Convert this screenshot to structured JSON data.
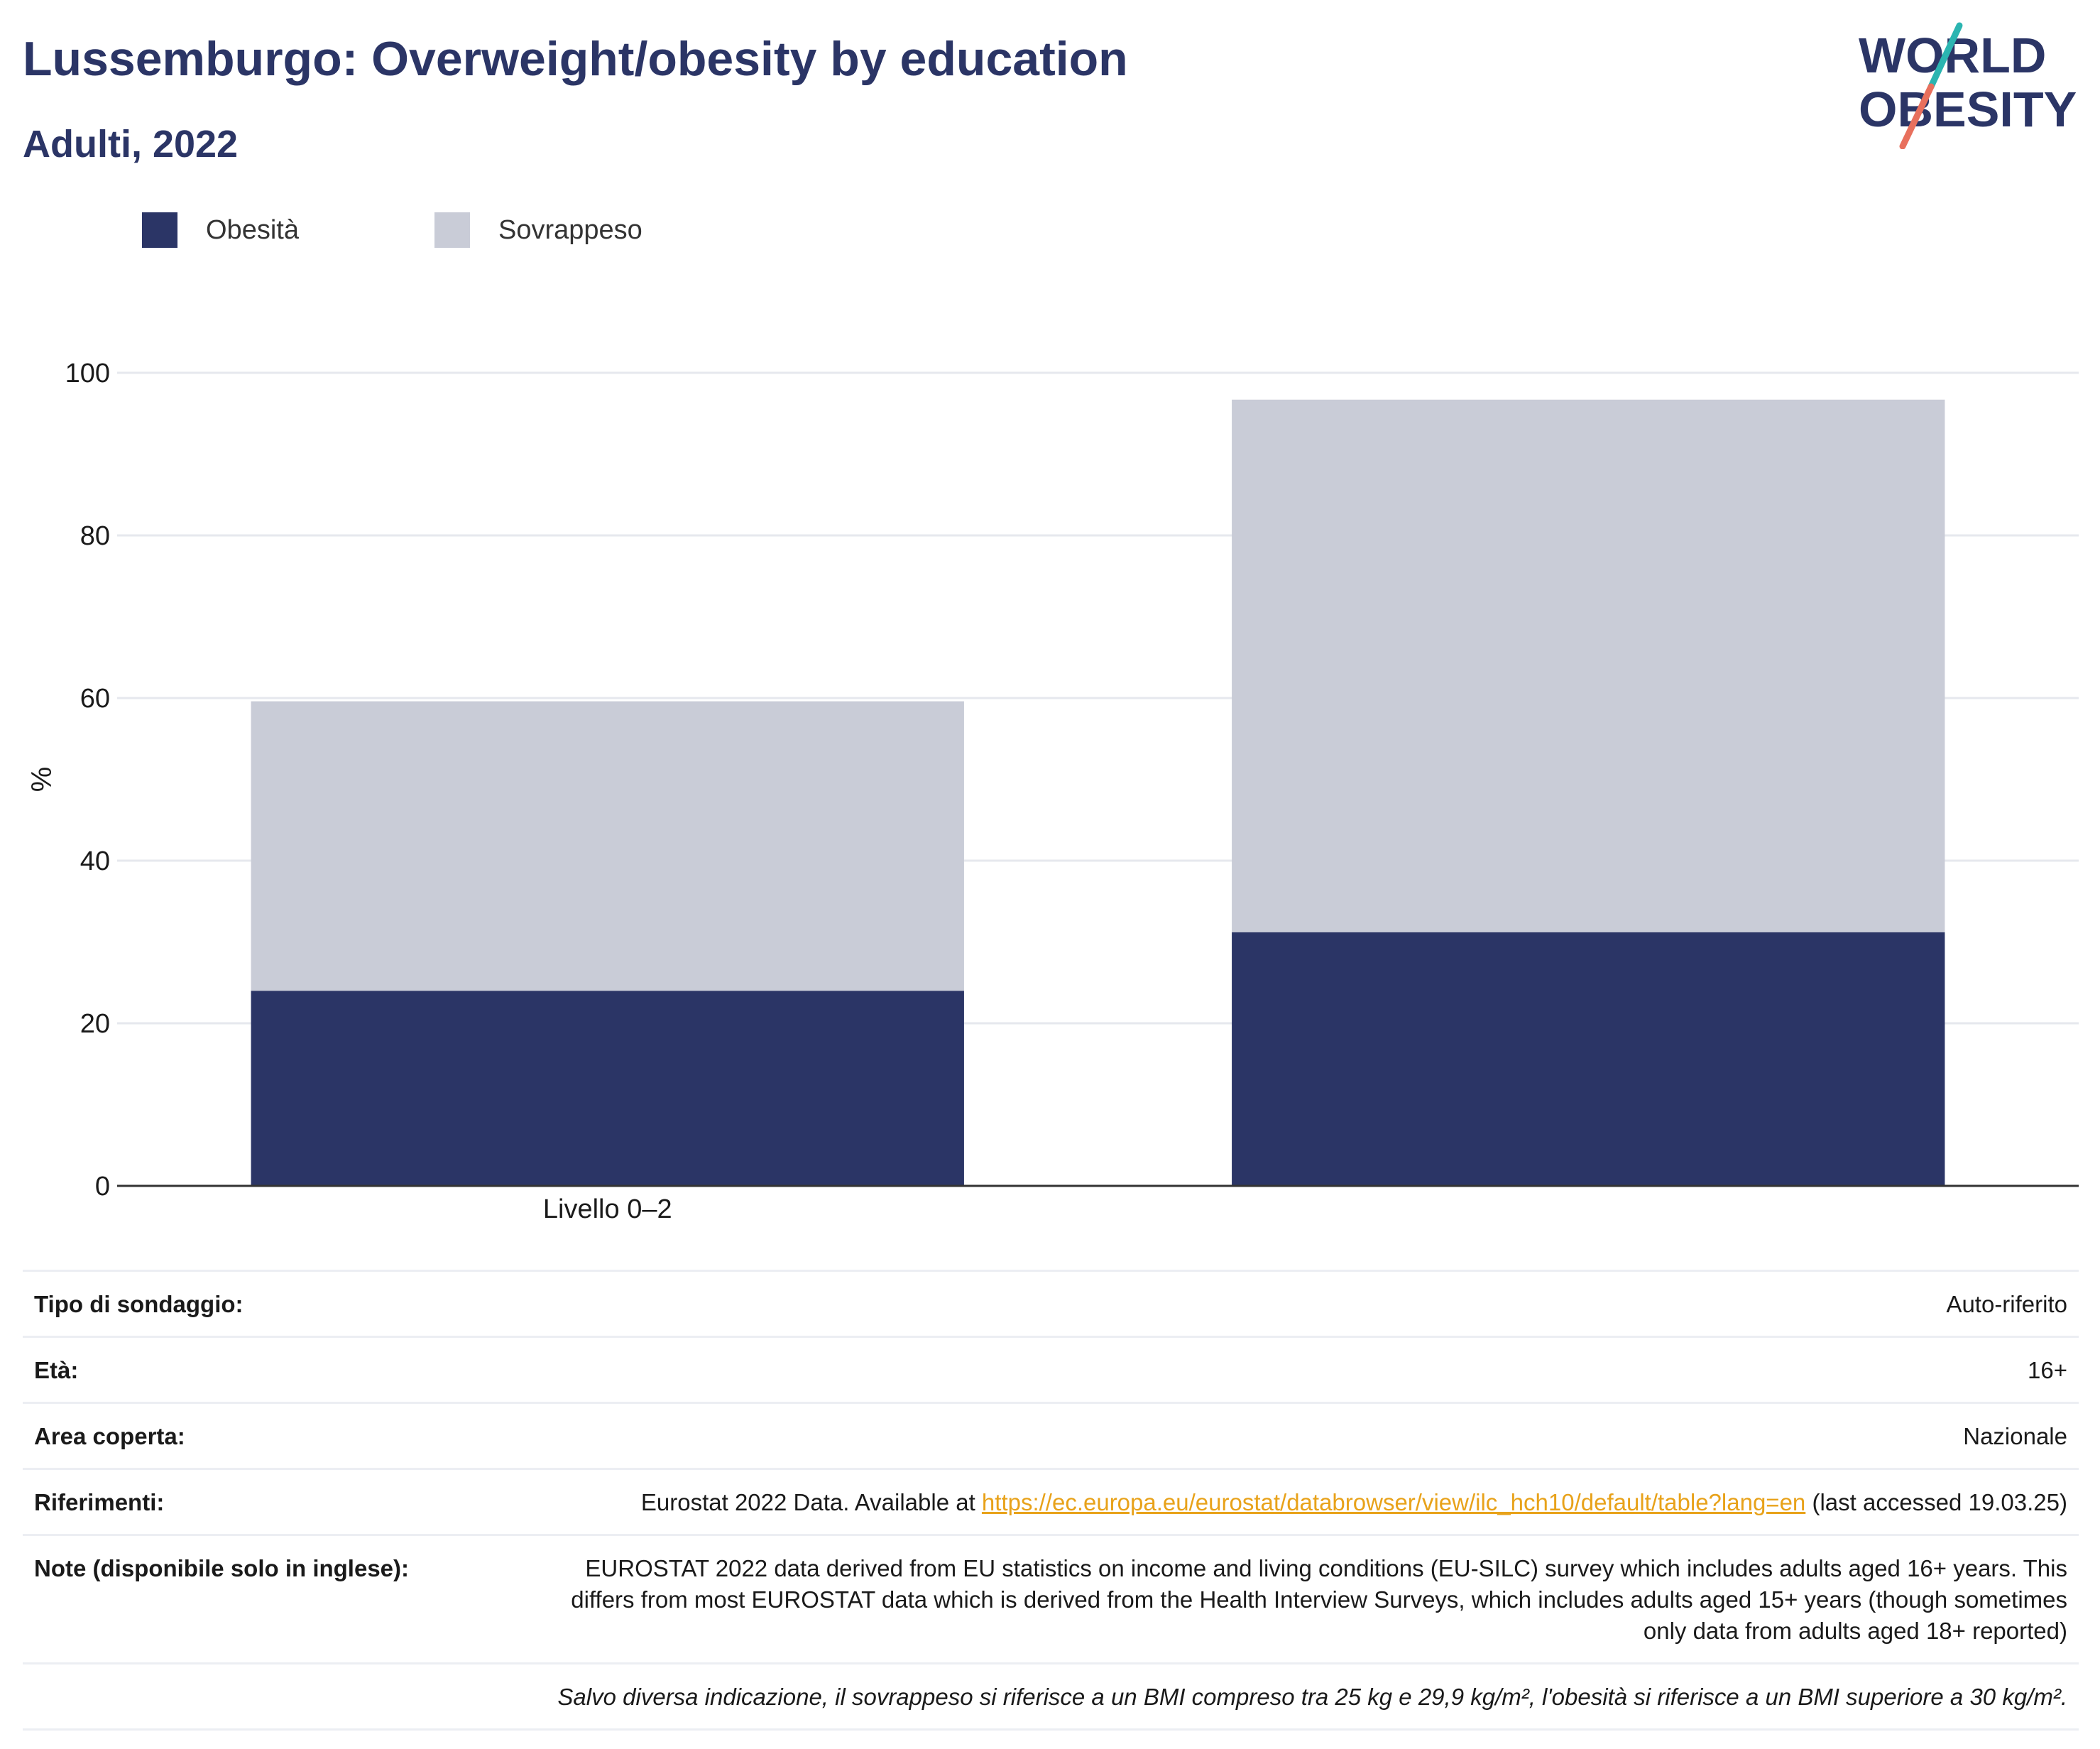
{
  "header": {
    "title": "Lussemburgo: Overweight/obesity by education",
    "subtitle": "Adulti, 2022"
  },
  "logo": {
    "line1": "WORLD",
    "line2": "OBESITY",
    "colors": {
      "text": "#2b3566",
      "slash_top": "#2bb5b1",
      "slash_bottom": "#e8705d"
    }
  },
  "legend": [
    {
      "label": "Obesità",
      "color": "#2b3566"
    },
    {
      "label": "Sovrappeso",
      "color": "#c9ccd7"
    }
  ],
  "chart_data": {
    "type": "bar",
    "stacked": true,
    "categories": [
      "Livello 0–2",
      ""
    ],
    "series": [
      {
        "name": "Obesità",
        "values": [
          24.0,
          31.2
        ],
        "color": "#2b3566"
      },
      {
        "name": "Sovrappeso",
        "values": [
          35.6,
          65.5
        ],
        "color": "#c9ccd7"
      }
    ],
    "ylabel": "%",
    "ylim": [
      0,
      100
    ],
    "yticks": [
      0,
      20,
      40,
      60,
      80,
      100
    ],
    "grid": true,
    "legend_position": "top-left"
  },
  "info": {
    "rows": [
      {
        "key": "Tipo di sondaggio:",
        "value": "Auto-riferito"
      },
      {
        "key": "Età:",
        "value": "16+"
      },
      {
        "key": "Area coperta:",
        "value": "Nazionale"
      }
    ],
    "references": {
      "key": "Riferimenti:",
      "prefix": "Eurostat 2022 Data. Available at ",
      "link": "https://ec.europa.eu/eurostat/databrowser/view/ilc_hch10/default/table?lang=en",
      "suffix": " (last accessed 19.03.25)"
    },
    "notes": {
      "key": "Note (disponibile solo in inglese):",
      "value": "EUROSTAT 2022 data derived from EU statistics on income and living conditions (EU-SILC) survey which includes adults aged 16+ years. This differs from most EUROSTAT data which is derived from the Health Interview Surveys, which includes adults aged 15+ years (though sometimes only data from adults aged 18+ reported)"
    },
    "footnote": "Salvo diversa indicazione, il sovrappeso si riferisce a un BMI compreso tra 25 kg e 29,9 kg/m², l'obesità si riferisce a un BMI superiore a 30 kg/m²."
  }
}
